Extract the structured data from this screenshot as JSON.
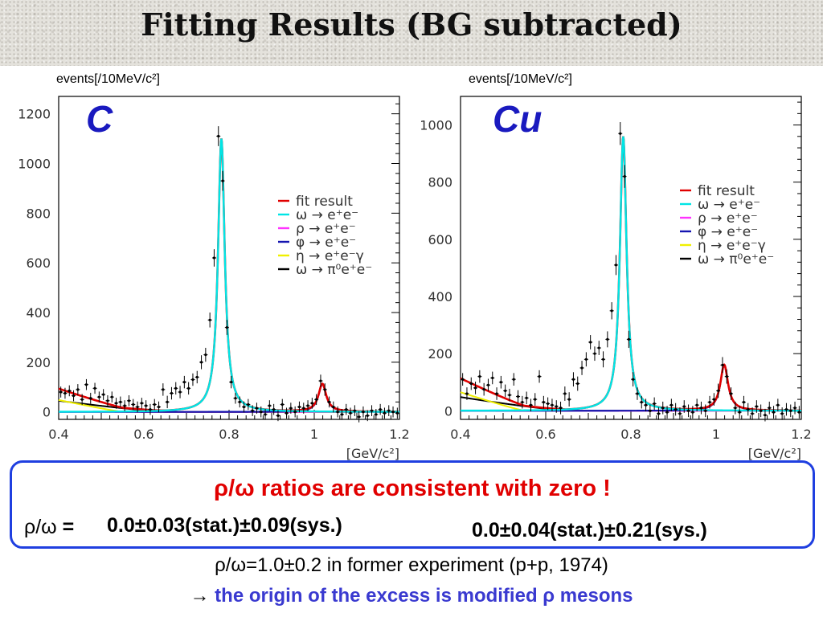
{
  "page": {
    "title": "Fitting Results (BG subtracted)"
  },
  "colors": {
    "fit": "#e00000",
    "omega_ee": "#00e5e5",
    "rho_ee": "#ff33ff",
    "phi_ee": "#1515b0",
    "eta_dalitz": "#f0f000",
    "omega_dalitz": "#000000",
    "data": "#000000",
    "box_border": "#1f3fe0",
    "headline": "#e10000",
    "conclusion": "#3a3ad0"
  },
  "chart_data": [
    {
      "type": "line",
      "target": "C",
      "ylabel": "events[/10MeV/c²]",
      "xlabel": "[GeV/c²]",
      "xlim": [
        0.4,
        1.2
      ],
      "ylim": [
        -30,
        1270
      ],
      "xticks": [
        0.4,
        0.6,
        0.8,
        1,
        1.2
      ],
      "xtick_labels": [
        "0.4",
        "0.6",
        "0.8",
        "1",
        "1.2"
      ],
      "yticks": [
        0,
        200,
        400,
        600,
        800,
        1000,
        1200
      ],
      "ytick_labels": [
        "0",
        "200",
        "400",
        "600",
        "800",
        "1000",
        "1200"
      ],
      "legend_position": "right",
      "legend": [
        {
          "key": "fit",
          "label": "fit result"
        },
        {
          "key": "omega_ee",
          "label": "ω → e⁺e⁻"
        },
        {
          "key": "rho_ee",
          "label": "ρ → e⁺e⁻"
        },
        {
          "key": "phi_ee",
          "label": "φ → e⁺e⁻"
        },
        {
          "key": "eta_dalitz",
          "label": "η → e⁺e⁻γ"
        },
        {
          "key": "omega_dalitz",
          "label": "ω → π⁰e⁺e⁻"
        }
      ],
      "model": {
        "omega_amp": 1100,
        "omega_mass": 0.782,
        "omega_width": 0.0095,
        "rho_amp": 0,
        "rho_mass": 0.77,
        "rho_width": 0.15,
        "phi_amp": 112,
        "phi_mass": 1.019,
        "phi_width": 0.011,
        "eta_amp": 48,
        "eta_end": 0.55,
        "dalitz_amp": 45,
        "dalitz_end": 0.65
      },
      "points": [
        {
          "x": 0.405,
          "y": 80,
          "e": 22
        },
        {
          "x": 0.415,
          "y": 75,
          "e": 22
        },
        {
          "x": 0.425,
          "y": 85,
          "e": 22
        },
        {
          "x": 0.435,
          "y": 65,
          "e": 22
        },
        {
          "x": 0.445,
          "y": 90,
          "e": 22
        },
        {
          "x": 0.455,
          "y": 50,
          "e": 22
        },
        {
          "x": 0.465,
          "y": 110,
          "e": 22
        },
        {
          "x": 0.475,
          "y": 55,
          "e": 22
        },
        {
          "x": 0.485,
          "y": 95,
          "e": 22
        },
        {
          "x": 0.495,
          "y": 60,
          "e": 22
        },
        {
          "x": 0.505,
          "y": 70,
          "e": 22
        },
        {
          "x": 0.515,
          "y": 45,
          "e": 22
        },
        {
          "x": 0.525,
          "y": 60,
          "e": 22
        },
        {
          "x": 0.535,
          "y": 35,
          "e": 22
        },
        {
          "x": 0.545,
          "y": 40,
          "e": 22
        },
        {
          "x": 0.555,
          "y": 25,
          "e": 22
        },
        {
          "x": 0.565,
          "y": 45,
          "e": 22
        },
        {
          "x": 0.575,
          "y": 30,
          "e": 22
        },
        {
          "x": 0.585,
          "y": 20,
          "e": 22
        },
        {
          "x": 0.595,
          "y": 35,
          "e": 22
        },
        {
          "x": 0.605,
          "y": 25,
          "e": 22
        },
        {
          "x": 0.615,
          "y": 10,
          "e": 22
        },
        {
          "x": 0.625,
          "y": 30,
          "e": 22
        },
        {
          "x": 0.635,
          "y": 20,
          "e": 22
        },
        {
          "x": 0.645,
          "y": 90,
          "e": 25
        },
        {
          "x": 0.655,
          "y": 40,
          "e": 25
        },
        {
          "x": 0.665,
          "y": 75,
          "e": 25
        },
        {
          "x": 0.675,
          "y": 95,
          "e": 25
        },
        {
          "x": 0.685,
          "y": 80,
          "e": 25
        },
        {
          "x": 0.695,
          "y": 120,
          "e": 25
        },
        {
          "x": 0.705,
          "y": 95,
          "e": 25
        },
        {
          "x": 0.715,
          "y": 130,
          "e": 25
        },
        {
          "x": 0.725,
          "y": 140,
          "e": 25
        },
        {
          "x": 0.735,
          "y": 200,
          "e": 28
        },
        {
          "x": 0.745,
          "y": 230,
          "e": 28
        },
        {
          "x": 0.755,
          "y": 370,
          "e": 30
        },
        {
          "x": 0.765,
          "y": 620,
          "e": 35
        },
        {
          "x": 0.775,
          "y": 1110,
          "e": 40
        },
        {
          "x": 0.785,
          "y": 930,
          "e": 40
        },
        {
          "x": 0.795,
          "y": 340,
          "e": 30
        },
        {
          "x": 0.805,
          "y": 120,
          "e": 25
        },
        {
          "x": 0.815,
          "y": 55,
          "e": 22
        },
        {
          "x": 0.825,
          "y": 40,
          "e": 22
        },
        {
          "x": 0.835,
          "y": 20,
          "e": 22
        },
        {
          "x": 0.845,
          "y": 30,
          "e": 22
        },
        {
          "x": 0.855,
          "y": 5,
          "e": 22
        },
        {
          "x": 0.865,
          "y": 15,
          "e": 22
        },
        {
          "x": 0.875,
          "y": 0,
          "e": 22
        },
        {
          "x": 0.885,
          "y": -10,
          "e": 22
        },
        {
          "x": 0.895,
          "y": 25,
          "e": 22
        },
        {
          "x": 0.905,
          "y": 10,
          "e": 22
        },
        {
          "x": 0.915,
          "y": -15,
          "e": 22
        },
        {
          "x": 0.925,
          "y": 30,
          "e": 22
        },
        {
          "x": 0.935,
          "y": -5,
          "e": 22
        },
        {
          "x": 0.945,
          "y": 15,
          "e": 22
        },
        {
          "x": 0.955,
          "y": 0,
          "e": 22
        },
        {
          "x": 0.965,
          "y": 20,
          "e": 22
        },
        {
          "x": 0.975,
          "y": 15,
          "e": 22
        },
        {
          "x": 0.985,
          "y": 25,
          "e": 22
        },
        {
          "x": 0.995,
          "y": 35,
          "e": 22
        },
        {
          "x": 1.005,
          "y": 50,
          "e": 22
        },
        {
          "x": 1.015,
          "y": 125,
          "e": 25
        },
        {
          "x": 1.025,
          "y": 90,
          "e": 25
        },
        {
          "x": 1.035,
          "y": 40,
          "e": 22
        },
        {
          "x": 1.045,
          "y": 20,
          "e": 22
        },
        {
          "x": 1.055,
          "y": 0,
          "e": 22
        },
        {
          "x": 1.065,
          "y": -10,
          "e": 22
        },
        {
          "x": 1.075,
          "y": 10,
          "e": 22
        },
        {
          "x": 1.085,
          "y": -5,
          "e": 22
        },
        {
          "x": 1.095,
          "y": 5,
          "e": 22
        },
        {
          "x": 1.105,
          "y": -20,
          "e": 22
        },
        {
          "x": 1.115,
          "y": 0,
          "e": 22
        },
        {
          "x": 1.125,
          "y": -15,
          "e": 22
        },
        {
          "x": 1.135,
          "y": 5,
          "e": 22
        },
        {
          "x": 1.145,
          "y": -10,
          "e": 22
        },
        {
          "x": 1.155,
          "y": 10,
          "e": 22
        },
        {
          "x": 1.165,
          "y": -5,
          "e": 22
        },
        {
          "x": 1.175,
          "y": 5,
          "e": 22
        },
        {
          "x": 1.185,
          "y": 0,
          "e": 22
        },
        {
          "x": 1.195,
          "y": -5,
          "e": 22
        }
      ]
    },
    {
      "type": "line",
      "target": "Cu",
      "ylabel": "events[/10MeV/c²]",
      "xlabel": "[GeV/c²]",
      "xlim": [
        0.4,
        1.2
      ],
      "ylim": [
        -30,
        1100
      ],
      "xticks": [
        0.4,
        0.6,
        0.8,
        1,
        1.2
      ],
      "xtick_labels": [
        "0.4",
        "0.6",
        "0.8",
        "1",
        "1.2"
      ],
      "yticks": [
        0,
        200,
        400,
        600,
        800,
        1000
      ],
      "ytick_labels": [
        "0",
        "200",
        "400",
        "600",
        "800",
        "1000"
      ],
      "legend_position": "right",
      "legend": [
        {
          "key": "fit",
          "label": "fit result"
        },
        {
          "key": "omega_ee",
          "label": "ω → e⁺e⁻"
        },
        {
          "key": "rho_ee",
          "label": "ρ → e⁺e⁻"
        },
        {
          "key": "phi_ee",
          "label": "φ → e⁺e⁻"
        },
        {
          "key": "eta_dalitz",
          "label": "η → e⁺e⁻γ"
        },
        {
          "key": "omega_dalitz",
          "label": "ω → π⁰e⁺e⁻"
        }
      ],
      "model": {
        "omega_amp": 960,
        "omega_mass": 0.782,
        "omega_width": 0.0095,
        "rho_amp": 0,
        "rho_mass": 0.77,
        "rho_width": 0.15,
        "phi_amp": 160,
        "phi_mass": 1.019,
        "phi_width": 0.011,
        "eta_amp": 65,
        "eta_end": 0.55,
        "dalitz_amp": 48,
        "dalitz_end": 0.65
      },
      "points": [
        {
          "x": 0.405,
          "y": 110,
          "e": 22
        },
        {
          "x": 0.415,
          "y": 60,
          "e": 22
        },
        {
          "x": 0.425,
          "y": 95,
          "e": 22
        },
        {
          "x": 0.435,
          "y": 80,
          "e": 22
        },
        {
          "x": 0.445,
          "y": 120,
          "e": 22
        },
        {
          "x": 0.455,
          "y": 75,
          "e": 22
        },
        {
          "x": 0.465,
          "y": 90,
          "e": 22
        },
        {
          "x": 0.475,
          "y": 115,
          "e": 22
        },
        {
          "x": 0.485,
          "y": 60,
          "e": 22
        },
        {
          "x": 0.495,
          "y": 100,
          "e": 22
        },
        {
          "x": 0.505,
          "y": 70,
          "e": 22
        },
        {
          "x": 0.515,
          "y": 55,
          "e": 22
        },
        {
          "x": 0.525,
          "y": 110,
          "e": 22
        },
        {
          "x": 0.535,
          "y": 50,
          "e": 22
        },
        {
          "x": 0.545,
          "y": 30,
          "e": 22
        },
        {
          "x": 0.555,
          "y": 45,
          "e": 22
        },
        {
          "x": 0.565,
          "y": 20,
          "e": 22
        },
        {
          "x": 0.575,
          "y": 40,
          "e": 22
        },
        {
          "x": 0.585,
          "y": 120,
          "e": 22
        },
        {
          "x": 0.595,
          "y": 30,
          "e": 22
        },
        {
          "x": 0.605,
          "y": 25,
          "e": 22
        },
        {
          "x": 0.615,
          "y": 20,
          "e": 22
        },
        {
          "x": 0.625,
          "y": 15,
          "e": 22
        },
        {
          "x": 0.635,
          "y": 10,
          "e": 22
        },
        {
          "x": 0.645,
          "y": 60,
          "e": 25
        },
        {
          "x": 0.655,
          "y": 40,
          "e": 25
        },
        {
          "x": 0.665,
          "y": 110,
          "e": 25
        },
        {
          "x": 0.675,
          "y": 95,
          "e": 25
        },
        {
          "x": 0.685,
          "y": 150,
          "e": 25
        },
        {
          "x": 0.695,
          "y": 180,
          "e": 25
        },
        {
          "x": 0.705,
          "y": 240,
          "e": 25
        },
        {
          "x": 0.715,
          "y": 200,
          "e": 25
        },
        {
          "x": 0.725,
          "y": 220,
          "e": 25
        },
        {
          "x": 0.735,
          "y": 180,
          "e": 28
        },
        {
          "x": 0.745,
          "y": 250,
          "e": 28
        },
        {
          "x": 0.755,
          "y": 350,
          "e": 30
        },
        {
          "x": 0.765,
          "y": 510,
          "e": 35
        },
        {
          "x": 0.775,
          "y": 970,
          "e": 40
        },
        {
          "x": 0.785,
          "y": 820,
          "e": 40
        },
        {
          "x": 0.795,
          "y": 250,
          "e": 30
        },
        {
          "x": 0.805,
          "y": 110,
          "e": 25
        },
        {
          "x": 0.815,
          "y": 60,
          "e": 22
        },
        {
          "x": 0.825,
          "y": 30,
          "e": 22
        },
        {
          "x": 0.835,
          "y": 20,
          "e": 22
        },
        {
          "x": 0.845,
          "y": 0,
          "e": 22
        },
        {
          "x": 0.855,
          "y": 25,
          "e": 22
        },
        {
          "x": 0.865,
          "y": -10,
          "e": 22
        },
        {
          "x": 0.875,
          "y": 10,
          "e": 22
        },
        {
          "x": 0.885,
          "y": -5,
          "e": 22
        },
        {
          "x": 0.895,
          "y": 20,
          "e": 22
        },
        {
          "x": 0.905,
          "y": 5,
          "e": 22
        },
        {
          "x": 0.915,
          "y": -10,
          "e": 22
        },
        {
          "x": 0.925,
          "y": 15,
          "e": 22
        },
        {
          "x": 0.935,
          "y": 0,
          "e": 22
        },
        {
          "x": 0.945,
          "y": -5,
          "e": 22
        },
        {
          "x": 0.955,
          "y": 20,
          "e": 22
        },
        {
          "x": 0.965,
          "y": 10,
          "e": 22
        },
        {
          "x": 0.975,
          "y": 0,
          "e": 22
        },
        {
          "x": 0.985,
          "y": 30,
          "e": 22
        },
        {
          "x": 0.995,
          "y": 40,
          "e": 22
        },
        {
          "x": 1.005,
          "y": 70,
          "e": 25
        },
        {
          "x": 1.015,
          "y": 160,
          "e": 28
        },
        {
          "x": 1.025,
          "y": 120,
          "e": 25
        },
        {
          "x": 1.035,
          "y": 60,
          "e": 22
        },
        {
          "x": 1.045,
          "y": 10,
          "e": 22
        },
        {
          "x": 1.055,
          "y": -5,
          "e": 22
        },
        {
          "x": 1.065,
          "y": 30,
          "e": 22
        },
        {
          "x": 1.075,
          "y": 5,
          "e": 22
        },
        {
          "x": 1.085,
          "y": -10,
          "e": 22
        },
        {
          "x": 1.095,
          "y": 15,
          "e": 22
        },
        {
          "x": 1.105,
          "y": 0,
          "e": 22
        },
        {
          "x": 1.115,
          "y": -15,
          "e": 22
        },
        {
          "x": 1.125,
          "y": 10,
          "e": 22
        },
        {
          "x": 1.135,
          "y": -5,
          "e": 22
        },
        {
          "x": 1.145,
          "y": 20,
          "e": 22
        },
        {
          "x": 1.155,
          "y": -10,
          "e": 22
        },
        {
          "x": 1.165,
          "y": 5,
          "e": 22
        },
        {
          "x": 1.175,
          "y": 0,
          "e": 22
        },
        {
          "x": 1.185,
          "y": 10,
          "e": 22
        },
        {
          "x": 1.195,
          "y": -5,
          "e": 22
        }
      ]
    }
  ],
  "results": {
    "headline_symbol": "ρ/ω",
    "headline_text": " ratios are consistent with zero !",
    "ratio_label_symbol": "ρ/ω",
    "ratio_label_eq": " = ",
    "carbon_value": "0.0±0.03(stat.)±0.09(sys.)",
    "copper_value": "0.0±0.04(stat.)±0.21(sys.)"
  },
  "footer": {
    "former": "ρ/ω=1.0±0.2 in former experiment (p+p, 1974)",
    "arrow": "→",
    "conclusion": " the origin of the excess is modified ρ mesons"
  }
}
